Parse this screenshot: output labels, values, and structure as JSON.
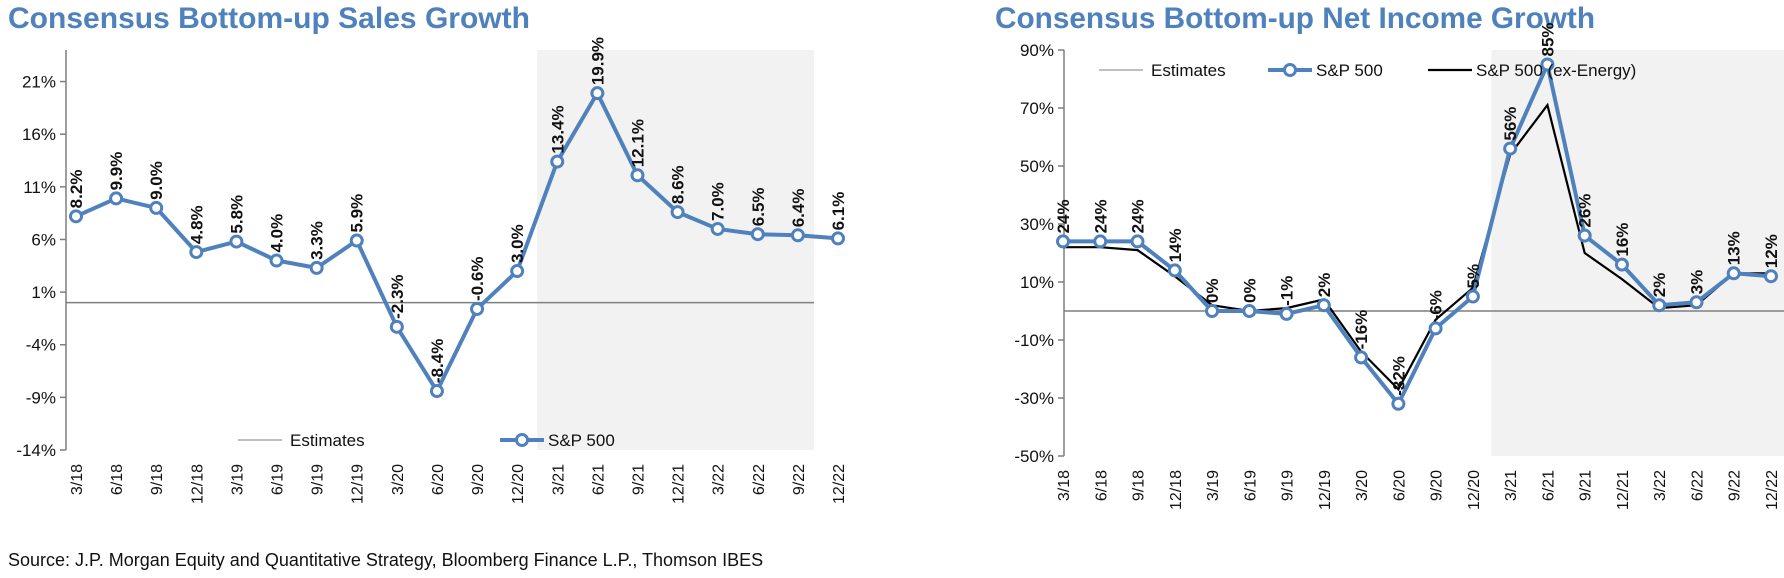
{
  "footer": {
    "source": "Source: J.P. Morgan Equity and Quantitative Strategy, Bloomberg Finance L.P., Thomson IBES"
  },
  "colors": {
    "title": "#4f81bd",
    "sp500": "#4f81bd",
    "exenergy": "#000000",
    "estimates_shade": "#f2f2f2",
    "axis": "#7f7f7f"
  },
  "chart_data": [
    {
      "type": "line",
      "title": "Consensus Bottom-up  Sales  Growth",
      "categories": [
        "3/18",
        "6/18",
        "9/18",
        "12/18",
        "3/19",
        "6/19",
        "9/19",
        "12/19",
        "3/20",
        "6/20",
        "9/20",
        "12/20",
        "3/21",
        "6/21",
        "9/21",
        "12/21",
        "3/22",
        "6/22",
        "9/22",
        "12/22"
      ],
      "y_ticks": [
        "21%",
        "16%",
        "11%",
        "6%",
        "1%",
        "-4%",
        "-9%",
        "-14%"
      ],
      "ylim": [
        -14,
        24
      ],
      "estimates_start": "3/21",
      "series": [
        {
          "name": "S&P 500",
          "values": [
            8.2,
            9.9,
            9.0,
            4.8,
            5.8,
            4.0,
            3.3,
            5.9,
            -2.3,
            -8.4,
            -0.6,
            3.0,
            13.4,
            19.9,
            12.1,
            8.6,
            7.0,
            6.5,
            6.4,
            6.1
          ],
          "labels": [
            "8.2%",
            "9.9%",
            "9.0%",
            "4.8%",
            "5.8%",
            "4.0%",
            "3.3%",
            "5.9%",
            "-2.3%",
            "-8.4%",
            "-0.6%",
            "3.0%",
            "13.4%",
            "19.9%",
            "12.1%",
            "8.6%",
            "7.0%",
            "6.5%",
            "6.4%",
            "6.1%"
          ]
        }
      ],
      "legend": [
        "Estimates",
        "S&P 500"
      ],
      "legend_position": "bottom"
    },
    {
      "type": "line",
      "title": "Consensus Bottom-up  Net Income Growth",
      "categories": [
        "3/18",
        "6/18",
        "9/18",
        "12/18",
        "3/19",
        "6/19",
        "9/19",
        "12/19",
        "3/20",
        "6/20",
        "9/20",
        "12/20",
        "3/21",
        "6/21",
        "9/21",
        "12/21",
        "3/22",
        "6/22",
        "9/22",
        "12/22"
      ],
      "y_ticks": [
        "90%",
        "70%",
        "50%",
        "30%",
        "10%",
        "-10%",
        "-30%",
        "-50%"
      ],
      "ylim": [
        -50,
        90
      ],
      "estimates_start": "3/21",
      "series": [
        {
          "name": "S&P 500",
          "values": [
            24,
            24,
            24,
            14,
            0,
            0,
            -1,
            2,
            -16,
            -32,
            -6,
            5,
            56,
            85,
            26,
            16,
            2,
            3,
            13,
            12
          ],
          "labels": [
            "24%",
            "24%",
            "24%",
            "14%",
            "0%",
            "0%",
            "-1%",
            "2%",
            "-16%",
            "-32%",
            "-6%",
            "5%",
            "56%",
            "85%",
            "26%",
            "16%",
            "2%",
            "3%",
            "13%",
            "12%"
          ]
        },
        {
          "name": "S&P 500 (ex-Energy)",
          "values": [
            22,
            22,
            21,
            12,
            2,
            0,
            1,
            4,
            -14,
            -27,
            -3,
            8,
            54,
            71,
            20,
            11,
            1,
            2,
            13,
            13
          ]
        }
      ],
      "legend": [
        "Estimates",
        "S&P 500",
        "S&P 500 (ex-Energy)"
      ],
      "legend_position": "top"
    }
  ]
}
